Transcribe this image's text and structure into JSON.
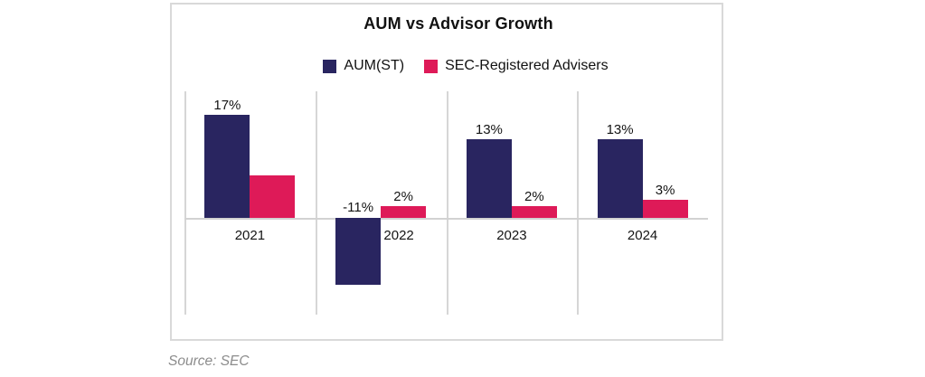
{
  "chart_data": {
    "type": "bar",
    "title": "AUM vs Advisor Growth",
    "categories": [
      "2021",
      "2022",
      "2023",
      "2024"
    ],
    "series": [
      {
        "name": "AUM(ST)",
        "color": "#292560",
        "values": [
          17,
          -11,
          13,
          13
        ],
        "labels": [
          "17%",
          "-11%",
          "13%",
          "13%"
        ]
      },
      {
        "name": "SEC-Registered Advisers",
        "color": "#de1a58",
        "values": [
          7,
          2,
          2,
          3
        ],
        "labels": [
          null,
          "2%",
          "2%",
          "3%"
        ]
      }
    ],
    "unit": "%",
    "ylim": [
      -16,
      21
    ],
    "grid": "vertical-category-separators",
    "legend_position": "top-center",
    "source": "Source: SEC"
  },
  "colors": {
    "navy": "#292560",
    "pink": "#de1a58",
    "gridline": "#d6d6d6",
    "axis_line": "#d2d2d2",
    "box_border": "#d9d9d9",
    "source_text": "#8c8c8c"
  }
}
